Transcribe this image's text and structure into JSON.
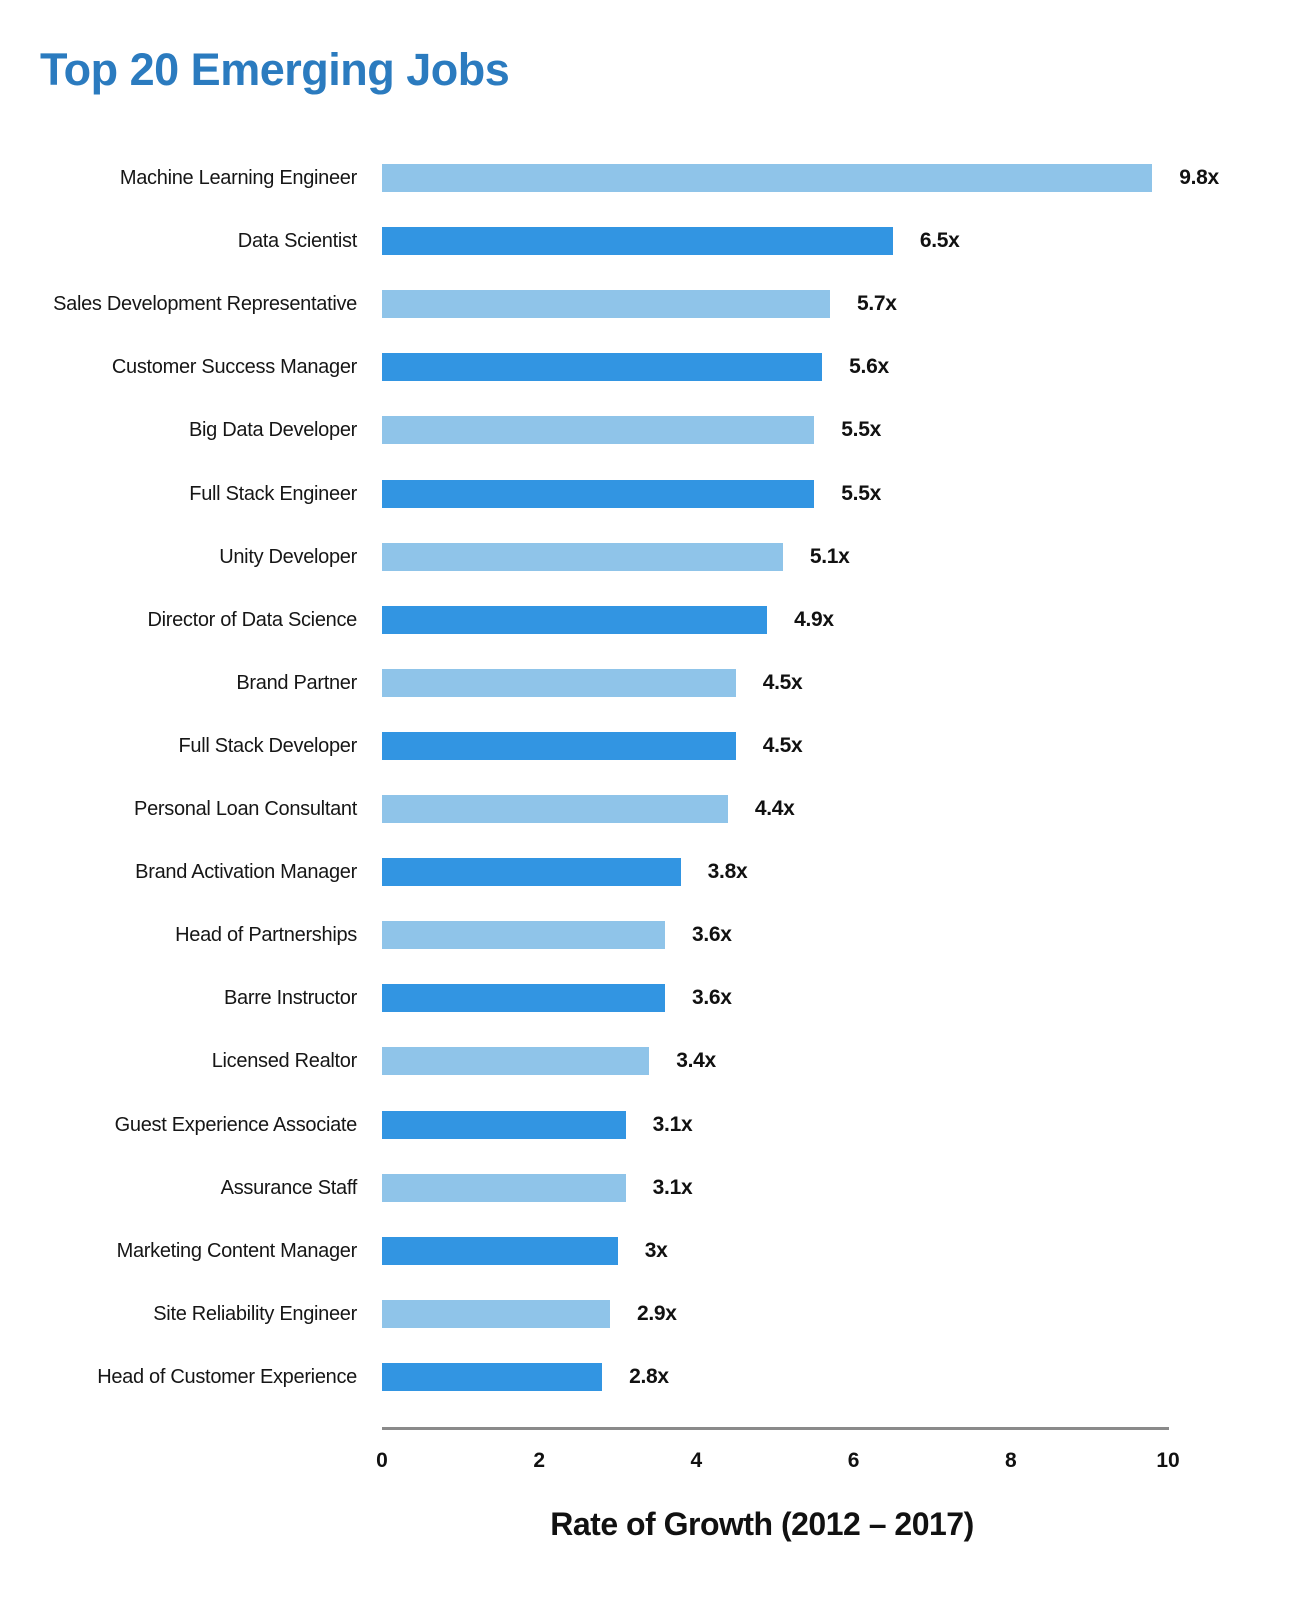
{
  "title": "Top 20 Emerging Jobs",
  "colors": {
    "title_blue": "#2B7BBF",
    "bar_light_blue": "#8FC4E9",
    "bar_dark_blue": "#3295E2",
    "axis_line_gray": "#8A8A8A",
    "text_black": "#111111"
  },
  "chart_data": {
    "type": "bar",
    "orientation": "horizontal",
    "title": "Top 20 Emerging Jobs",
    "xlabel": "Rate of Growth (2012 – 2017)",
    "ylabel": "",
    "xlim": [
      0,
      10
    ],
    "x_ticks": [
      0,
      2,
      4,
      6,
      8,
      10
    ],
    "grid": false,
    "legend": false,
    "bar_color_pattern": "alternating light/dark blue",
    "categories": [
      "Machine Learning Engineer",
      "Data Scientist",
      "Sales Development Representative",
      "Customer Success Manager",
      "Big Data Developer",
      "Full Stack Engineer",
      "Unity Developer",
      "Director of Data Science",
      "Brand Partner",
      "Full Stack Developer",
      "Personal Loan Consultant",
      "Brand Activation Manager",
      "Head of Partnerships",
      "Barre Instructor",
      "Licensed Realtor",
      "Guest Experience Associate",
      "Assurance Staff",
      "Marketing Content Manager",
      "Site Reliability Engineer",
      "Head of Customer Experience"
    ],
    "values": [
      9.8,
      6.5,
      5.7,
      5.6,
      5.5,
      5.5,
      5.1,
      4.9,
      4.5,
      4.5,
      4.4,
      3.8,
      3.6,
      3.6,
      3.4,
      3.1,
      3.1,
      3.0,
      2.9,
      2.8
    ],
    "value_labels": [
      "9.8x",
      "6.5x",
      "5.7x",
      "5.6x",
      "5.5x",
      "5.5x",
      "5.1x",
      "4.9x",
      "4.5x",
      "4.5x",
      "4.4x",
      "3.8x",
      "3.6x",
      "3.6x",
      "3.4x",
      "3.1x",
      "3.1x",
      "3x",
      "2.9x",
      "2.8x"
    ]
  }
}
